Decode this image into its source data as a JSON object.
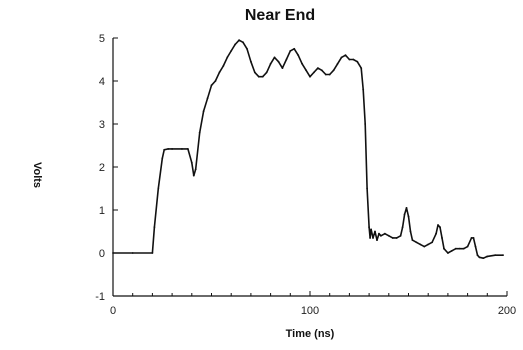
{
  "chart_data": {
    "type": "line",
    "title": "Near End",
    "xlabel": "Time (ns)",
    "ylabel": "Volts",
    "xlim": [
      0,
      200
    ],
    "ylim": [
      -1,
      5
    ],
    "xticks": [
      0,
      100,
      200
    ],
    "yticks": [
      -1,
      0,
      1,
      2,
      3,
      4,
      5
    ],
    "grid": false,
    "series": [
      {
        "x": [
          0,
          10,
          20,
          21,
          23,
          25,
          26,
          28,
          30,
          35,
          38,
          40,
          41,
          42,
          44,
          46,
          48,
          50,
          52,
          54,
          56,
          58,
          60,
          62,
          64,
          66,
          68,
          70,
          72,
          74,
          76,
          78,
          80,
          82,
          84,
          86,
          88,
          90,
          92,
          94,
          96,
          98,
          100,
          102,
          104,
          106,
          108,
          110,
          112,
          114,
          116,
          118,
          120,
          122,
          124,
          126,
          127,
          128,
          129,
          130,
          130.5,
          131,
          132,
          133,
          134,
          135,
          136,
          138,
          140,
          142,
          144,
          146,
          147,
          148,
          149,
          150,
          151,
          152,
          154,
          156,
          158,
          160,
          162,
          164,
          165,
          166,
          167,
          168,
          170,
          172,
          174,
          176,
          178,
          180,
          182,
          183,
          184,
          185,
          186,
          188,
          190,
          194,
          198
        ],
        "values": [
          0,
          0,
          0,
          0.6,
          1.5,
          2.2,
          2.4,
          2.42,
          2.42,
          2.42,
          2.42,
          2.1,
          1.8,
          1.95,
          2.8,
          3.3,
          3.6,
          3.9,
          4.0,
          4.2,
          4.35,
          4.55,
          4.7,
          4.85,
          4.95,
          4.9,
          4.75,
          4.45,
          4.2,
          4.1,
          4.1,
          4.2,
          4.4,
          4.55,
          4.45,
          4.3,
          4.5,
          4.7,
          4.75,
          4.6,
          4.4,
          4.25,
          4.1,
          4.2,
          4.3,
          4.25,
          4.15,
          4.15,
          4.25,
          4.4,
          4.55,
          4.6,
          4.5,
          4.5,
          4.45,
          4.3,
          3.8,
          3.0,
          1.5,
          0.6,
          0.35,
          0.55,
          0.35,
          0.5,
          0.3,
          0.45,
          0.4,
          0.45,
          0.4,
          0.35,
          0.35,
          0.4,
          0.6,
          0.9,
          1.05,
          0.85,
          0.5,
          0.3,
          0.25,
          0.2,
          0.15,
          0.2,
          0.25,
          0.45,
          0.65,
          0.6,
          0.35,
          0.1,
          0.0,
          0.05,
          0.1,
          0.1,
          0.1,
          0.15,
          0.35,
          0.35,
          0.15,
          -0.05,
          -0.1,
          -0.12,
          -0.08,
          -0.05,
          -0.05
        ]
      }
    ]
  }
}
